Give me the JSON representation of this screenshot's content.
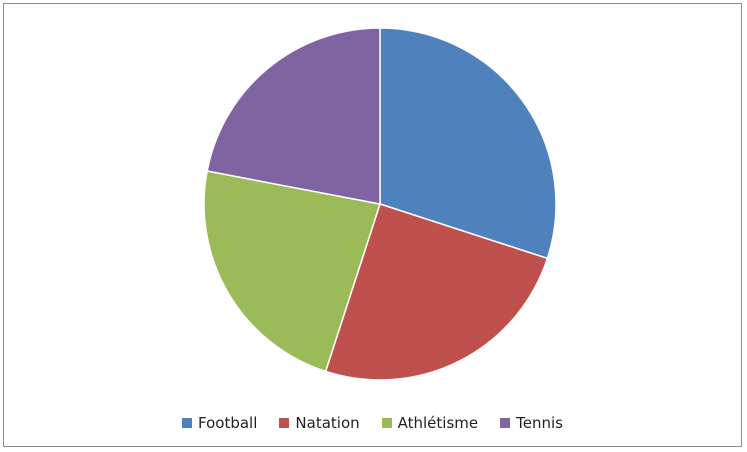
{
  "chart_data": {
    "type": "pie",
    "categories": [
      "Football",
      "Natation",
      "Athlétisme",
      "Tennis"
    ],
    "values": [
      30,
      25,
      23,
      22
    ],
    "colors": [
      "#4f81bd",
      "#c0504d",
      "#9bbb59",
      "#8064a2"
    ],
    "start_angle": "12 o'clock",
    "direction": "clockwise",
    "legend_position": "bottom"
  }
}
